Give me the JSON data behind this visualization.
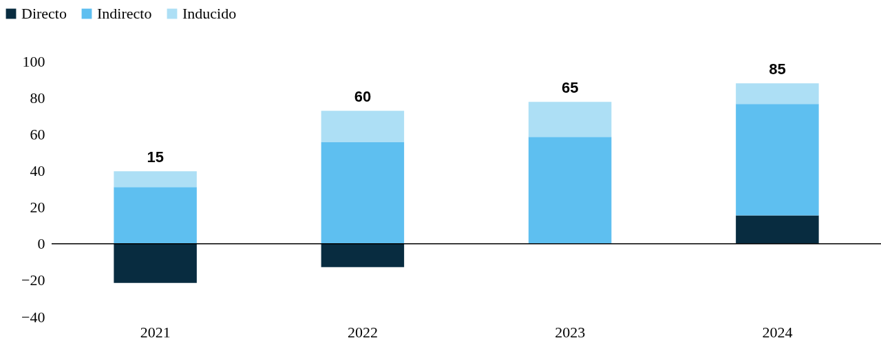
{
  "chart_data": {
    "type": "bar",
    "stacked": true,
    "categories": [
      "2021",
      "2022",
      "2023",
      "2024"
    ],
    "series": [
      {
        "name": "Directo",
        "color": "#082c40",
        "values": [
          -21.5,
          -12.8,
          0,
          15.5
        ]
      },
      {
        "name": "Indirecto",
        "color": "#5ebff0",
        "values": [
          31,
          55.8,
          58.5,
          61.1
        ]
      },
      {
        "name": "Inducido",
        "color": "#addff5",
        "values": [
          8.7,
          17,
          19.2,
          11.3
        ]
      }
    ],
    "annotations": [
      {
        "text": "15",
        "x": "2021",
        "y": 39.7
      },
      {
        "text": "60",
        "x": "2022",
        "y": 72.8
      },
      {
        "text": "65",
        "x": "2023",
        "y": 77.7
      },
      {
        "text": "85",
        "x": "2024",
        "y": 87.9
      }
    ],
    "ylim": [
      -40,
      100
    ],
    "yticks": [
      -40,
      -20,
      0,
      20,
      40,
      60,
      80,
      100
    ],
    "ref_lines": [
      {
        "axis": "y",
        "value": 0,
        "color": "#000000"
      }
    ],
    "grid": false,
    "legend": "top left"
  }
}
